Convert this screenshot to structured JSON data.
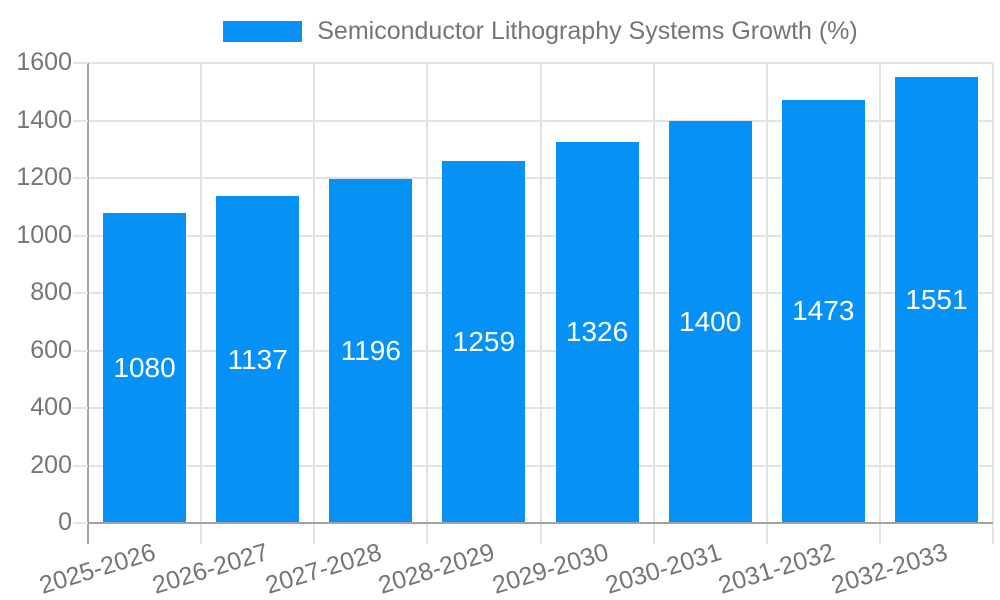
{
  "chart_data": {
    "type": "bar",
    "title": "Semiconductor Lithography Systems Growth (%)",
    "legend_position": "top",
    "categories": [
      "2025-2026",
      "2026-2027",
      "2027-2028",
      "2028-2029",
      "2029-2030",
      "2030-2031",
      "2031-2032",
      "2032-2033"
    ],
    "values": [
      1080,
      1137,
      1196,
      1259,
      1326,
      1400,
      1473,
      1551
    ],
    "xlabel": "",
    "ylabel": "",
    "ylim": [
      0,
      1600
    ],
    "yticks": [
      0,
      200,
      400,
      600,
      800,
      1000,
      1200,
      1400,
      1600
    ],
    "grid": true,
    "value_labels_inside_bars": true,
    "colors": {
      "bar": "#0591f5",
      "grid": "#e3e3e3",
      "axis": "#a3a3a3",
      "tick_text": "#757575",
      "value_text": "#ffffff",
      "background": "#ffffff"
    }
  }
}
